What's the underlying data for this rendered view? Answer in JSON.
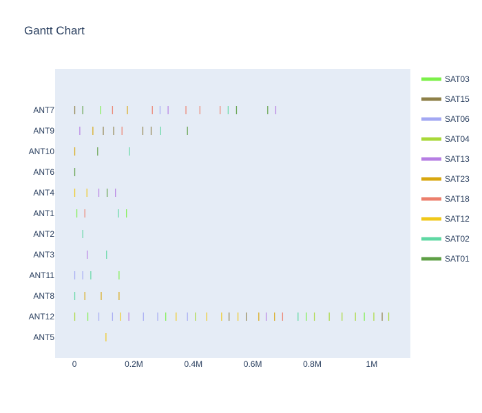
{
  "chart_data": {
    "type": "gantt",
    "title": "Gantt Chart",
    "xlabel": "",
    "ylabel": "",
    "xlim": [
      -65000,
      1130000
    ],
    "x_ticks": [
      {
        "value": 0,
        "label": "0"
      },
      {
        "value": 200000,
        "label": "0.2M"
      },
      {
        "value": 400000,
        "label": "0.4M"
      },
      {
        "value": 600000,
        "label": "0.6M"
      },
      {
        "value": 800000,
        "label": "0.8M"
      },
      {
        "value": 1000000,
        "label": "1M"
      }
    ],
    "categories": [
      "ANT7",
      "ANT9",
      "ANT10",
      "ANT6",
      "ANT4",
      "ANT1",
      "ANT2",
      "ANT3",
      "ANT11",
      "ANT8",
      "ANT12",
      "ANT5"
    ],
    "legend": [
      {
        "name": "SAT03",
        "color": "#7cf04a"
      },
      {
        "name": "SAT15",
        "color": "#8e8048"
      },
      {
        "name": "SAT06",
        "color": "#a3a8f3"
      },
      {
        "name": "SAT04",
        "color": "#a8d839"
      },
      {
        "name": "SAT13",
        "color": "#b67ee3"
      },
      {
        "name": "SAT23",
        "color": "#d8a70f"
      },
      {
        "name": "SAT18",
        "color": "#ec7f6c"
      },
      {
        "name": "SAT12",
        "color": "#f0c81a"
      },
      {
        "name": "SAT02",
        "color": "#5fd8a3"
      },
      {
        "name": "SAT01",
        "color": "#5e9f45"
      }
    ],
    "legend_position": "right",
    "tasks": [
      {
        "resource": "ANT7",
        "x": [
          1000,
          28000,
          88000,
          128000,
          178000,
          262000,
          288000,
          315000,
          375000,
          422000,
          490000,
          517000,
          545000,
          650000,
          677000
        ],
        "colors": [
          "#8e8048",
          "#5e9f45",
          "#7cf04a",
          "#ec7f6c",
          "#d8a70f",
          "#ec7f6c",
          "#a3a8f3",
          "#b67ee3",
          "#ec7f6c",
          "#ec7f6c",
          "#ec7f6c",
          "#5fd8a3",
          "#5e9f45",
          "#5e9f45",
          "#b67ee3"
        ]
      },
      {
        "resource": "ANT9",
        "x": [
          18000,
          62000,
          97000,
          132000,
          160000,
          230000,
          258000,
          290000,
          380000
        ],
        "colors": [
          "#b67ee3",
          "#d8a70f",
          "#8e8048",
          "#8e8048",
          "#ec7f6c",
          "#8e8048",
          "#8e8048",
          "#5fd8a3",
          "#5e9f45"
        ]
      },
      {
        "resource": "ANT10",
        "x": [
          1000,
          78000,
          185000
        ],
        "colors": [
          "#d8a70f",
          "#5e9f45",
          "#5fd8a3"
        ]
      },
      {
        "resource": "ANT6",
        "x": [
          1000
        ],
        "colors": [
          "#5e9f45"
        ]
      },
      {
        "resource": "ANT4",
        "x": [
          1000,
          42000,
          82000,
          110000,
          138000
        ],
        "colors": [
          "#f0c81a",
          "#f0c81a",
          "#b67ee3",
          "#5e9f45",
          "#b67ee3"
        ]
      },
      {
        "resource": "ANT1",
        "x": [
          8000,
          35000,
          148000,
          175000
        ],
        "colors": [
          "#7cf04a",
          "#ec7f6c",
          "#5fd8a3",
          "#7cf04a"
        ]
      },
      {
        "resource": "ANT2",
        "x": [
          28000
        ],
        "colors": [
          "#5fd8a3"
        ]
      },
      {
        "resource": "ANT3",
        "x": [
          43000,
          108000
        ],
        "colors": [
          "#b67ee3",
          "#5fd8a3"
        ]
      },
      {
        "resource": "ANT11",
        "x": [
          1000,
          28000,
          55000,
          150000
        ],
        "colors": [
          "#a3a8f3",
          "#a3a8f3",
          "#5fd8a3",
          "#7cf04a"
        ]
      },
      {
        "resource": "ANT8",
        "x": [
          1000,
          35000,
          90000,
          150000
        ],
        "colors": [
          "#5fd8a3",
          "#d8a70f",
          "#d8a70f",
          "#d8a70f"
        ]
      },
      {
        "resource": "ANT12",
        "x": [
          1000,
          45000,
          82000,
          128000,
          155000,
          183000,
          232000,
          280000,
          307000,
          342000,
          380000,
          407000,
          445000,
          495000,
          520000,
          550000,
          578000,
          620000,
          645000,
          673000,
          700000,
          752000,
          780000,
          807000,
          857000,
          900000,
          945000,
          975000,
          1007000,
          1035000,
          1057000
        ],
        "colors": [
          "#a8d839",
          "#7cf04a",
          "#a3a8f3",
          "#a3a8f3",
          "#f0c81a",
          "#b67ee3",
          "#a3a8f3",
          "#a3a8f3",
          "#7cf04a",
          "#f0c81a",
          "#a3a8f3",
          "#a8d839",
          "#f0c81a",
          "#f0c81a",
          "#8e8048",
          "#f0c81a",
          "#8e8048",
          "#d8a70f",
          "#b67ee3",
          "#d8a70f",
          "#ec7f6c",
          "#5fd8a3",
          "#7cf04a",
          "#a8d839",
          "#a8d839",
          "#a8d839",
          "#a8d839",
          "#7cf04a",
          "#a8d839",
          "#8e8048",
          "#a8d839"
        ]
      },
      {
        "resource": "ANT5",
        "x": [
          106000
        ],
        "colors": [
          "#f0c81a"
        ]
      }
    ]
  }
}
